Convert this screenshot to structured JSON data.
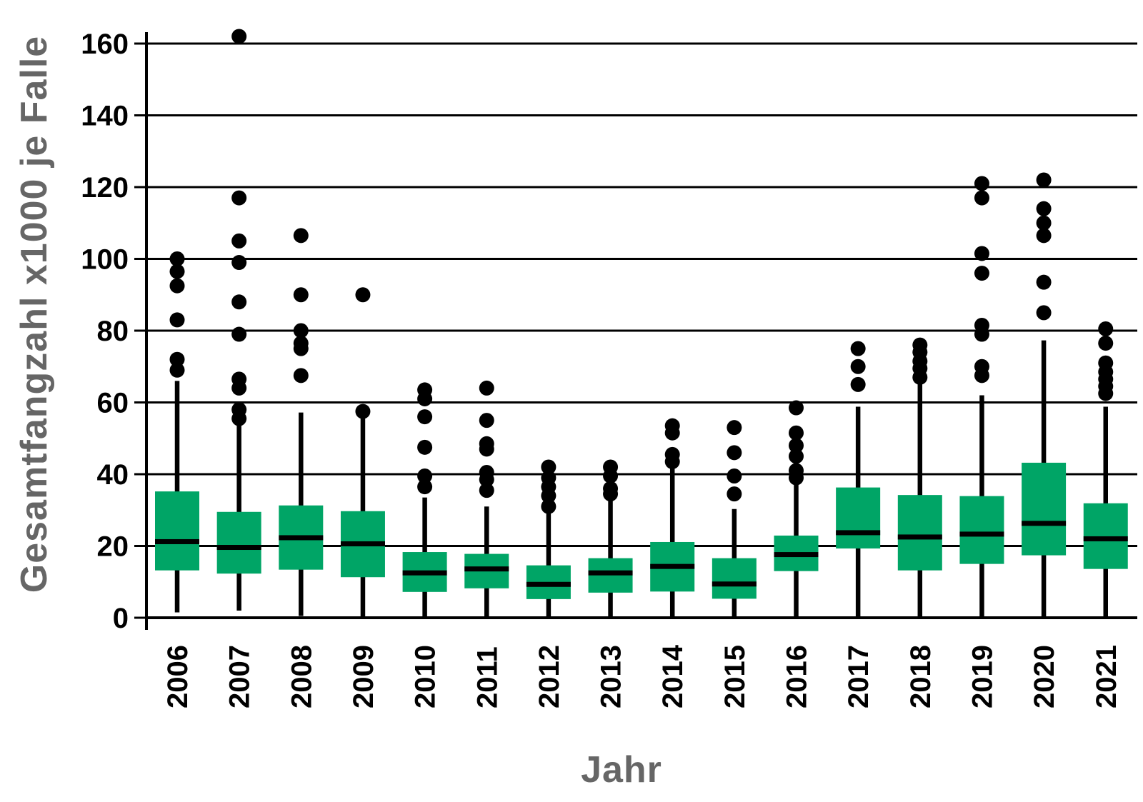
{
  "colors": {
    "box_fill": "#00a566",
    "line_black": "#000000",
    "axis_label_gray": "#666666",
    "background": "#ffffff"
  },
  "chart_data": {
    "type": "boxplot",
    "title": "",
    "xlabel": "Jahr",
    "ylabel": "Gesamtfangzahl x1000 je Falle",
    "ylim": [
      0,
      165
    ],
    "yticks": [
      0,
      20,
      40,
      60,
      80,
      100,
      120,
      140,
      160
    ],
    "grid": true,
    "legend": "none",
    "categories": [
      "2006",
      "2007",
      "2008",
      "2009",
      "2010",
      "2011",
      "2012",
      "2013",
      "2014",
      "2015",
      "2016",
      "2017",
      "2018",
      "2019",
      "2020",
      "2021"
    ],
    "series": [
      {
        "year": "2006",
        "whisker_low": 1.5,
        "q1": 13.2,
        "median": 21.2,
        "q3": 35.2,
        "whisker_high": 66,
        "outliers": [
          69,
          72,
          83,
          92.5,
          96.5,
          100
        ]
      },
      {
        "year": "2007",
        "whisker_low": 2,
        "q1": 12.3,
        "median": 19.6,
        "q3": 29.5,
        "whisker_high": 54.5,
        "outliers": [
          55.5,
          58,
          64,
          66.5,
          79,
          88,
          99,
          105,
          117,
          162
        ]
      },
      {
        "year": "2008",
        "whisker_low": 0.5,
        "q1": 13.4,
        "median": 22.3,
        "q3": 31.3,
        "whisker_high": 57.2,
        "outliers": [
          67.5,
          75,
          76.5,
          80,
          90,
          106.5
        ]
      },
      {
        "year": "2009",
        "whisker_low": 0.3,
        "q1": 11.3,
        "median": 20.6,
        "q3": 29.7,
        "whisker_high": 56.5,
        "outliers": [
          57.5,
          90
        ]
      },
      {
        "year": "2010",
        "whisker_low": 0.3,
        "q1": 7.2,
        "median": 12.5,
        "q3": 18.3,
        "whisker_high": 33.5,
        "outliers": [
          36.5,
          39.5,
          47.5,
          56,
          61,
          63.5
        ]
      },
      {
        "year": "2011",
        "whisker_low": 0.3,
        "q1": 8.2,
        "median": 13.6,
        "q3": 17.8,
        "whisker_high": 31,
        "outliers": [
          35.5,
          38.5,
          40.5,
          47,
          48.5,
          55,
          64
        ]
      },
      {
        "year": "2012",
        "whisker_low": 0.3,
        "q1": 5.2,
        "median": 9.3,
        "q3": 14.6,
        "whisker_high": 29.5,
        "outliers": [
          31,
          34,
          36.5,
          39,
          42
        ]
      },
      {
        "year": "2013",
        "whisker_low": 0.3,
        "q1": 7,
        "median": 12.5,
        "q3": 16.6,
        "whisker_high": 33,
        "outliers": [
          34.5,
          36,
          39.5,
          42
        ]
      },
      {
        "year": "2014",
        "whisker_low": 0.3,
        "q1": 7.3,
        "median": 14.3,
        "q3": 21.1,
        "whisker_high": 42,
        "outliers": [
          43.5,
          45.5,
          51.5,
          53.5
        ]
      },
      {
        "year": "2015",
        "whisker_low": 0.3,
        "q1": 5.3,
        "median": 9.4,
        "q3": 16.6,
        "whisker_high": 30.3,
        "outliers": [
          34.5,
          39.5,
          46,
          53
        ]
      },
      {
        "year": "2016",
        "whisker_low": 0.3,
        "q1": 13,
        "median": 17.6,
        "q3": 22.9,
        "whisker_high": 37.3,
        "outliers": [
          39,
          41,
          45,
          48,
          51.5,
          58.5
        ]
      },
      {
        "year": "2017",
        "whisker_low": 0.3,
        "q1": 19.3,
        "median": 23.7,
        "q3": 36.3,
        "whisker_high": 58.8,
        "outliers": [
          65,
          70,
          75
        ]
      },
      {
        "year": "2018",
        "whisker_low": 0.3,
        "q1": 13.2,
        "median": 22.5,
        "q3": 34.2,
        "whisker_high": 65.5,
        "outliers": [
          67,
          69.5,
          71.5,
          74,
          76
        ]
      },
      {
        "year": "2019",
        "whisker_low": 0.3,
        "q1": 15,
        "median": 23.3,
        "q3": 33.9,
        "whisker_high": 62,
        "outliers": [
          67.5,
          70,
          79,
          81.5,
          96,
          101.5,
          117,
          121
        ]
      },
      {
        "year": "2020",
        "whisker_low": 0.3,
        "q1": 17.4,
        "median": 26.3,
        "q3": 43.2,
        "whisker_high": 77.3,
        "outliers": [
          85,
          93.5,
          106.5,
          110,
          114,
          122
        ]
      },
      {
        "year": "2021",
        "whisker_low": 0.3,
        "q1": 13.6,
        "median": 22,
        "q3": 31.9,
        "whisker_high": 58.8,
        "outliers": [
          62.5,
          64.5,
          66.5,
          68.5,
          71,
          76.5,
          80.5
        ]
      }
    ]
  }
}
